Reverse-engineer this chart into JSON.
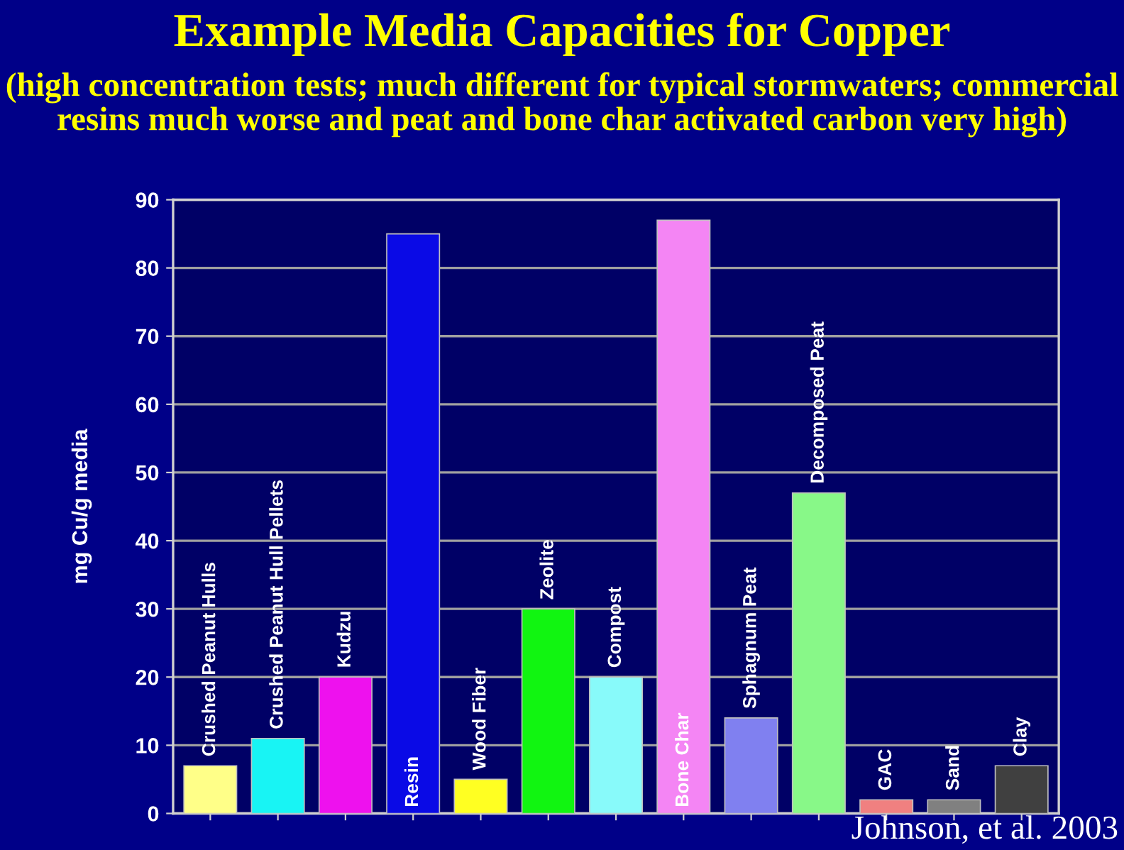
{
  "chart_data": {
    "type": "bar",
    "title": "Example Media Capacities for Copper",
    "subtitle": "(high concentration tests; much different for typical stormwaters; commercial resins much worse and peat and bone char activated carbon very high)",
    "ylabel": "mg Cu/g media",
    "categories": [
      "Crushed Peanut Hulls",
      "Crushed Peanut Hull Pellets",
      "Kudzu",
      "Resin",
      "Wood Fiber",
      "Zeolite",
      "Compost",
      "Bone Char",
      "Sphagnum Peat",
      "Decomposed Peat",
      "GAC",
      "Sand",
      "Clay"
    ],
    "values": [
      7,
      11,
      20,
      85,
      5,
      30,
      20,
      87,
      14,
      47,
      2,
      2,
      7
    ],
    "colors": [
      "#ffff88",
      "#18f4f4",
      "#ee11ee",
      "#0a0ae6",
      "#ffff22",
      "#11f511",
      "#88fafa",
      "#f485f4",
      "#8080f0",
      "#88f888",
      "#f08080",
      "#808080",
      "#404040"
    ],
    "ylim": [
      0,
      90
    ],
    "yticks": [
      0,
      10,
      20,
      30,
      40,
      50,
      60,
      70,
      80,
      90
    ],
    "grid": "y",
    "legend": false,
    "annotations": [
      "Johnson, et al. 2003"
    ]
  }
}
